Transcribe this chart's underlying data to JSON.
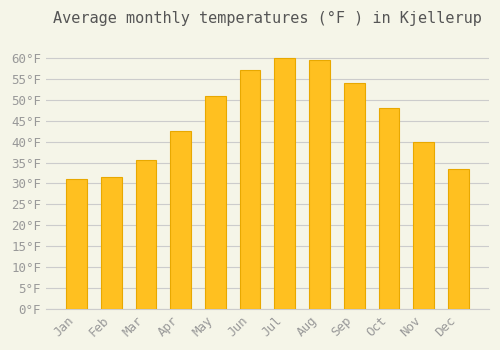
{
  "title": "Average monthly temperatures (°F ) in Kjellerup",
  "months": [
    "Jan",
    "Feb",
    "Mar",
    "Apr",
    "May",
    "Jun",
    "Jul",
    "Aug",
    "Sep",
    "Oct",
    "Nov",
    "Dec"
  ],
  "values": [
    31,
    31.5,
    35.5,
    42.5,
    51,
    57,
    60,
    59.5,
    54,
    48,
    40,
    33.5
  ],
  "bar_color": "#FFC020",
  "bar_edge_color": "#E8A800",
  "background_color": "#F5F5E8",
  "grid_color": "#CCCCCC",
  "text_color": "#999999",
  "title_color": "#555555",
  "ylim": [
    0,
    65
  ],
  "yticks": [
    0,
    5,
    10,
    15,
    20,
    25,
    30,
    35,
    40,
    45,
    50,
    55,
    60
  ],
  "ylabel_suffix": "°F",
  "title_fontsize": 11,
  "tick_fontsize": 9
}
